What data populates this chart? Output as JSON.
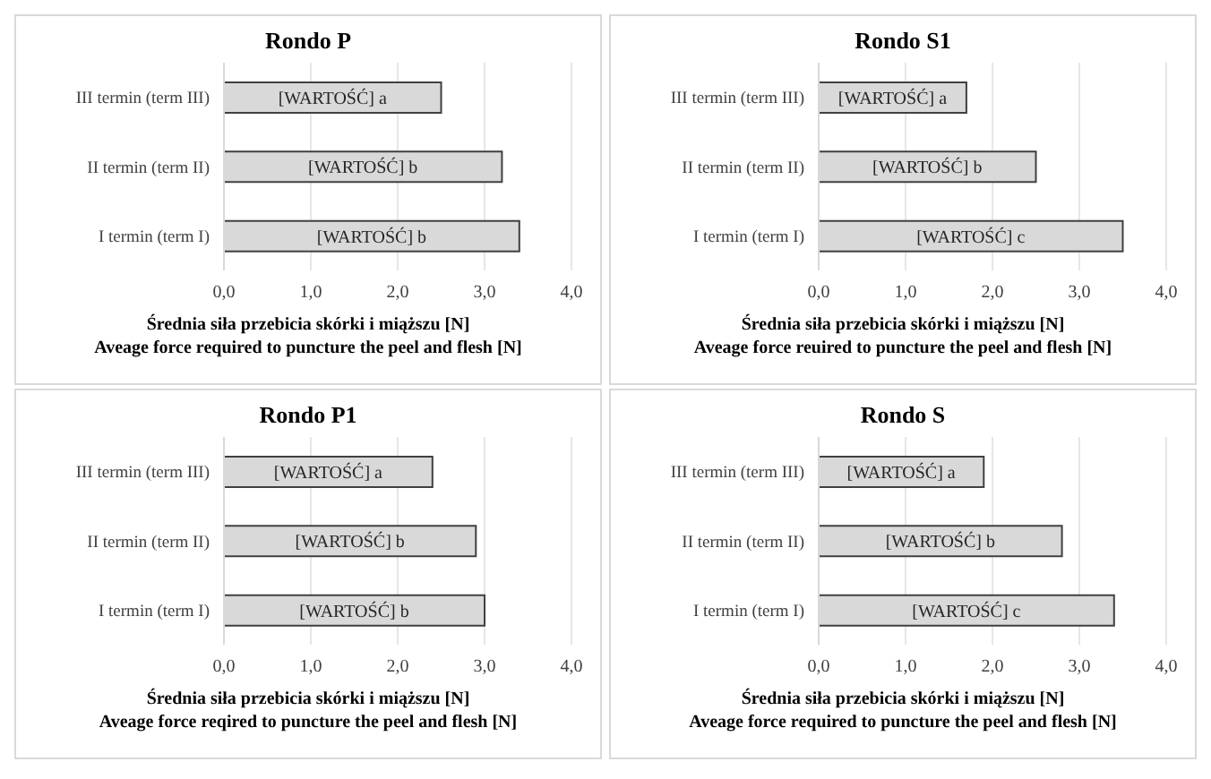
{
  "chart_data": [
    {
      "type": "bar",
      "orientation": "horizontal",
      "title": "Rondo P",
      "categories": [
        "III termin (term III)",
        "II termin (term II)",
        "I termin (term I)"
      ],
      "values": [
        2.5,
        3.2,
        3.4
      ],
      "value_labels": [
        "[WARTOŚĆ] a",
        "[WARTOŚĆ] b",
        "[WARTOŚĆ] b"
      ],
      "color": "#d9d9d9",
      "xlim": [
        0,
        4
      ],
      "xticks": [
        {
          "value": 0,
          "label": "0,0"
        },
        {
          "value": 1,
          "label": "1,0"
        },
        {
          "value": 2,
          "label": "2,0"
        },
        {
          "value": 3,
          "label": "3,0"
        },
        {
          "value": 4,
          "label": "4,0"
        }
      ],
      "grid": "x",
      "legend": false,
      "xlabel": "Średnia siła przebicia skórki i miąższu [N]\nAveage force required to puncture the peel and flesh [N]"
    },
    {
      "type": "bar",
      "orientation": "horizontal",
      "title": "Rondo S1",
      "categories": [
        "III termin (term III)",
        "II termin (term II)",
        "I termin (term I)"
      ],
      "values": [
        1.7,
        2.5,
        3.5
      ],
      "value_labels": [
        "[WARTOŚĆ] a",
        "[WARTOŚĆ] b",
        "[WARTOŚĆ] c"
      ],
      "color": "#d9d9d9",
      "xlim": [
        0,
        4
      ],
      "xticks": [
        {
          "value": 0,
          "label": "0,0"
        },
        {
          "value": 1,
          "label": "1,0"
        },
        {
          "value": 2,
          "label": "2,0"
        },
        {
          "value": 3,
          "label": "3,0"
        },
        {
          "value": 4,
          "label": "4,0"
        }
      ],
      "grid": "x",
      "legend": false,
      "xlabel": "Średnia siła przebicia skórki i miąższu [N]\nAveage force reuired to puncture the peel and flesh [N]"
    },
    {
      "type": "bar",
      "orientation": "horizontal",
      "title": "Rondo P1",
      "categories": [
        "III termin (term III)",
        "II termin (term II)",
        "I termin (term I)"
      ],
      "values": [
        2.4,
        2.9,
        3.0
      ],
      "value_labels": [
        "[WARTOŚĆ] a",
        "[WARTOŚĆ] b",
        "[WARTOŚĆ] b"
      ],
      "color": "#d9d9d9",
      "xlim": [
        0,
        4
      ],
      "xticks": [
        {
          "value": 0,
          "label": "0,0"
        },
        {
          "value": 1,
          "label": "1,0"
        },
        {
          "value": 2,
          "label": "2,0"
        },
        {
          "value": 3,
          "label": "3,0"
        },
        {
          "value": 4,
          "label": "4,0"
        }
      ],
      "grid": "x",
      "legend": false,
      "xlabel": "Średnia siła przebicia skórki i miąższu [N]\nAveage force reqired to puncture the peel and flesh [N]"
    },
    {
      "type": "bar",
      "orientation": "horizontal",
      "title": "Rondo S",
      "categories": [
        "III termin (term III)",
        "II termin (term II)",
        "I termin (term I)"
      ],
      "values": [
        1.9,
        2.8,
        3.4
      ],
      "value_labels": [
        "[WARTOŚĆ] a",
        "[WARTOŚĆ] b",
        "[WARTOŚĆ] c"
      ],
      "color": "#d9d9d9",
      "xlim": [
        0,
        4
      ],
      "xticks": [
        {
          "value": 0,
          "label": "0,0"
        },
        {
          "value": 1,
          "label": "1,0"
        },
        {
          "value": 2,
          "label": "2,0"
        },
        {
          "value": 3,
          "label": "3,0"
        },
        {
          "value": 4,
          "label": "4,0"
        }
      ],
      "grid": "x",
      "legend": false,
      "xlabel": "Średnia siła przebicia skórki i miąższu [N]\nAveage force required to puncture the peel and flesh [N]"
    }
  ]
}
